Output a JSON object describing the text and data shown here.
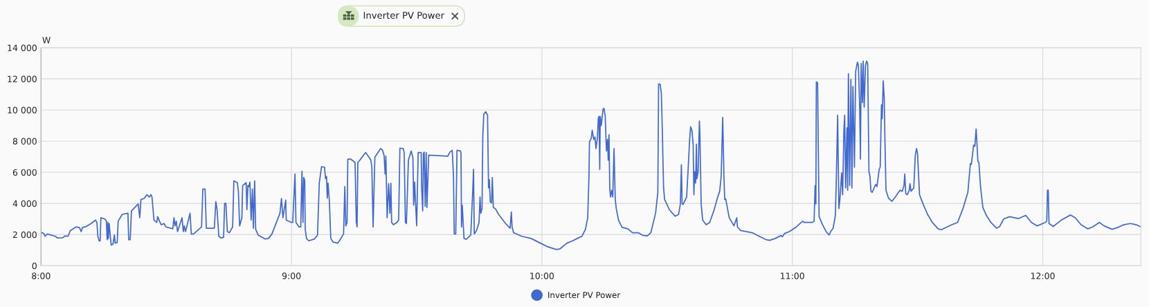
{
  "chart_data": {
    "type": "line",
    "title": "Inverter PV Power",
    "ylabel": "W",
    "x": [
      8.0,
      8.011,
      8.016,
      8.025,
      8.057,
      8.066,
      8.085,
      8.098,
      8.108,
      8.117,
      8.14,
      8.154,
      8.16,
      8.166,
      8.181,
      8.2,
      8.218,
      8.223,
      8.227,
      8.232,
      8.236,
      8.239,
      8.255,
      8.261,
      8.264,
      8.267,
      8.269,
      8.272,
      8.28,
      8.287,
      8.293,
      8.296,
      8.304,
      8.308,
      8.324,
      8.347,
      8.35,
      8.356,
      8.361,
      8.388,
      8.394,
      8.399,
      8.411,
      8.423,
      8.432,
      8.439,
      8.443,
      8.451,
      8.462,
      8.466,
      8.473,
      8.48,
      8.491,
      8.499,
      8.526,
      8.531,
      8.535,
      8.54,
      8.545,
      8.563,
      8.568,
      8.572,
      8.577,
      8.595,
      8.6,
      8.609,
      8.641,
      8.646,
      8.655,
      8.66,
      8.692,
      8.698,
      8.703,
      8.71,
      8.719,
      8.729,
      8.733,
      8.738,
      8.744,
      8.752,
      8.765,
      8.77,
      8.784,
      8.788,
      8.793,
      8.802,
      8.805,
      8.819,
      8.822,
      8.826,
      8.83,
      8.834,
      8.839,
      8.844,
      8.848,
      8.853,
      8.857,
      8.867,
      8.894,
      8.908,
      8.922,
      8.94,
      8.954,
      8.96,
      8.966,
      8.977,
      8.979,
      9.0,
      9.005,
      9.014,
      9.018,
      9.03,
      9.037,
      9.042,
      9.046,
      9.049,
      9.053,
      9.055,
      9.06,
      9.069,
      9.092,
      9.104,
      9.111,
      9.12,
      9.132,
      9.136,
      9.14,
      9.143,
      9.146,
      9.151,
      9.157,
      9.166,
      9.185,
      9.194,
      9.208,
      9.213,
      9.217,
      9.222,
      9.225,
      9.236,
      9.254,
      9.259,
      9.262,
      9.265,
      9.273,
      9.296,
      9.305,
      9.317,
      9.321,
      9.326,
      9.333,
      9.356,
      9.363,
      9.37,
      9.374,
      9.377,
      9.382,
      9.388,
      9.393,
      9.397,
      9.4,
      9.407,
      9.421,
      9.428,
      9.433,
      9.446,
      9.45,
      9.455,
      9.459,
      9.467,
      9.478,
      9.485,
      9.488,
      9.492,
      9.494,
      9.5,
      9.506,
      9.518,
      9.52,
      9.524,
      9.527,
      9.53,
      9.534,
      9.538,
      9.541,
      9.548,
      9.587,
      9.624,
      9.633,
      9.642,
      9.647,
      9.65,
      9.656,
      9.661,
      9.675,
      9.677,
      9.679,
      9.682,
      9.689,
      9.698,
      9.716,
      9.724,
      9.727,
      9.73,
      9.739,
      9.749,
      9.753,
      9.756,
      9.761,
      9.764,
      9.768,
      9.776,
      9.783,
      9.787,
      9.79,
      9.794,
      9.799,
      9.802,
      9.806,
      9.814,
      9.827,
      9.855,
      9.873,
      9.878,
      9.881,
      9.887,
      9.92,
      9.957,
      9.994,
      10.021,
      10.058,
      10.072,
      10.1,
      10.123,
      10.141,
      10.16,
      10.174,
      10.183,
      10.188,
      10.19,
      10.197,
      10.201,
      10.207,
      10.212,
      10.216,
      10.222,
      10.225,
      10.228,
      10.231,
      10.233,
      10.237,
      10.244,
      10.248,
      10.253,
      10.256,
      10.258,
      10.262,
      10.265,
      10.268,
      10.271,
      10.274,
      10.279,
      10.283,
      10.288,
      10.293,
      10.297,
      10.306,
      10.32,
      10.343,
      10.362,
      10.385,
      10.403,
      10.421,
      10.435,
      10.454,
      10.463,
      10.466,
      10.472,
      10.477,
      10.481,
      10.483,
      10.486,
      10.49,
      10.509,
      10.532,
      10.546,
      10.553,
      10.557,
      10.56,
      10.564,
      10.578,
      10.584,
      10.59,
      10.594,
      10.599,
      10.604,
      10.607,
      10.61,
      10.614,
      10.617,
      10.619,
      10.624,
      10.629,
      10.631,
      10.636,
      10.642,
      10.656,
      10.67,
      10.688,
      10.702,
      10.71,
      10.716,
      10.722,
      10.727,
      10.73,
      10.734,
      10.748,
      10.767,
      10.778,
      10.781,
      10.794,
      10.84,
      10.868,
      10.896,
      10.909,
      10.932,
      10.955,
      10.96,
      10.969,
      10.988,
      11.016,
      11.041,
      11.048,
      11.08,
      11.087,
      11.091,
      11.094,
      11.096,
      11.101,
      11.105,
      11.107,
      11.121,
      11.135,
      11.147,
      11.153,
      11.163,
      11.172,
      11.176,
      11.181,
      11.186,
      11.19,
      11.197,
      11.201,
      11.206,
      11.209,
      11.213,
      11.218,
      11.221,
      11.224,
      11.229,
      11.234,
      11.238,
      11.242,
      11.248,
      11.253,
      11.26,
      11.264,
      11.269,
      11.272,
      11.275,
      11.28,
      11.283,
      11.287,
      11.292,
      11.297,
      11.301,
      11.306,
      11.31,
      11.314,
      11.319,
      11.333,
      11.338,
      11.347,
      11.351,
      11.356,
      11.359,
      11.363,
      11.367,
      11.37,
      11.374,
      11.384,
      11.398,
      11.411,
      11.43,
      11.439,
      11.446,
      11.449,
      11.453,
      11.459,
      11.467,
      11.47,
      11.474,
      11.485,
      11.491,
      11.496,
      11.5,
      11.503,
      11.508,
      11.522,
      11.54,
      11.559,
      11.582,
      11.595,
      11.618,
      11.637,
      11.66,
      11.683,
      11.701,
      11.711,
      11.715,
      11.724,
      11.729,
      11.734,
      11.738,
      11.741,
      11.745,
      11.752,
      11.761,
      11.775,
      11.793,
      11.816,
      11.828,
      11.844,
      11.867,
      11.904,
      11.932,
      11.955,
      11.978,
      12.01,
      12.016,
      12.019,
      12.022,
      12.025,
      12.042,
      12.074,
      12.111,
      12.13,
      12.153,
      12.18,
      12.199,
      12.226,
      12.245,
      12.277,
      12.3,
      12.323,
      12.35,
      12.374,
      12.392
    ],
    "series": [
      {
        "name": "Inverter PV Power",
        "color": "#4269d0",
        "values": [
          2150,
          2070,
          1890,
          2040,
          1890,
          1780,
          1790,
          1920,
          1890,
          2260,
          2490,
          2440,
          2190,
          2460,
          2520,
          2710,
          2930,
          2780,
          1890,
          1600,
          1600,
          3080,
          3000,
          2860,
          1670,
          2780,
          1750,
          2710,
          1330,
          1380,
          1970,
          1450,
          1480,
          2860,
          3300,
          3370,
          1670,
          1670,
          3520,
          3970,
          3080,
          4260,
          4310,
          4560,
          4410,
          4560,
          4410,
          2930,
          2780,
          3150,
          2860,
          2630,
          2710,
          2490,
          2370,
          3080,
          2560,
          2860,
          2190,
          3080,
          2190,
          2560,
          2190,
          3370,
          2040,
          2040,
          2490,
          4930,
          4930,
          2410,
          2410,
          4110,
          3600,
          1890,
          1780,
          1820,
          4000,
          4000,
          2190,
          2120,
          2490,
          5450,
          5330,
          4780,
          2560,
          3080,
          5150,
          5330,
          3600,
          5150,
          5080,
          5370,
          2930,
          4930,
          2410,
          5450,
          2340,
          1970,
          1720,
          1750,
          2040,
          2780,
          3370,
          4310,
          3080,
          4220,
          2930,
          2780,
          2780,
          5890,
          2780,
          2490,
          2490,
          6070,
          2780,
          5670,
          5450,
          2340,
          1750,
          1600,
          1720,
          1970,
          5300,
          6360,
          6330,
          5590,
          5740,
          4340,
          5300,
          4260,
          1750,
          1520,
          1450,
          1670,
          2040,
          5080,
          2560,
          2780,
          6850,
          6850,
          6630,
          2780,
          2490,
          6630,
          6780,
          7270,
          7070,
          6780,
          6330,
          2490,
          6970,
          7520,
          7440,
          7070,
          5890,
          7040,
          3080,
          5270,
          3370,
          5300,
          2780,
          2630,
          2780,
          2930,
          7550,
          7520,
          7300,
          2780,
          2710,
          6780,
          7370,
          6930,
          3890,
          5370,
          4560,
          2560,
          7270,
          7270,
          5000,
          3520,
          7220,
          7300,
          3820,
          7270,
          3740,
          7100,
          7070,
          7030,
          7300,
          7410,
          5740,
          2040,
          2040,
          7410,
          7370,
          7220,
          2490,
          3890,
          1750,
          1700,
          1970,
          4850,
          6190,
          2040,
          2260,
          2780,
          4410,
          3370,
          3670,
          8330,
          9740,
          9890,
          9660,
          5000,
          5520,
          4110,
          4040,
          5670,
          3740,
          3670,
          3300,
          2710,
          2410,
          3450,
          2490,
          2120,
          1890,
          1750,
          1450,
          1230,
          1040,
          1080,
          1450,
          1600,
          1750,
          1890,
          2340,
          3080,
          5740,
          7960,
          8180,
          8700,
          8110,
          8260,
          7520,
          8260,
          9440,
          9590,
          6190,
          9590,
          9000,
          10030,
          10110,
          9590,
          8110,
          7370,
          8110,
          6780,
          8410,
          5000,
          4410,
          4850,
          4410,
          7520,
          4260,
          3670,
          2930,
          2460,
          2370,
          2120,
          2120,
          1950,
          1920,
          2120,
          3370,
          4710,
          11660,
          11660,
          11070,
          8700,
          7070,
          5000,
          4260,
          3600,
          3180,
          3300,
          3970,
          6480,
          3970,
          3940,
          4410,
          6190,
          8110,
          8920,
          8700,
          7810,
          4560,
          6040,
          5300,
          7810,
          5590,
          6040,
          9290,
          8410,
          3970,
          2930,
          2630,
          2780,
          3600,
          4410,
          4780,
          5740,
          9520,
          5740,
          4260,
          4290,
          3080,
          2560,
          3080,
          2490,
          2260,
          2120,
          1890,
          1670,
          1630,
          1750,
          1940,
          1860,
          2070,
          2190,
          2490,
          2860,
          2780,
          2780,
          2860,
          5150,
          3970,
          11810,
          11740,
          5740,
          3150,
          2630,
          2190,
          1970,
          2190,
          2410,
          3230,
          5740,
          9660,
          3670,
          4260,
          5960,
          4560,
          8700,
          9660,
          5000,
          8850,
          4850,
          12330,
          5150,
          11960,
          5000,
          11510,
          6330,
          12480,
          13070,
          12850,
          10180,
          6850,
          12990,
          10480,
          13140,
          10180,
          12850,
          13140,
          12990,
          6040,
          5740,
          4780,
          4710,
          5220,
          5080,
          6190,
          6330,
          10330,
          9440,
          11880,
          10770,
          7960,
          4850,
          4340,
          4140,
          4410,
          4850,
          4780,
          5150,
          5890,
          4630,
          4560,
          4850,
          5270,
          4780,
          5000,
          7070,
          7520,
          7220,
          6190,
          4560,
          3970,
          3300,
          2780,
          2370,
          2310,
          2490,
          2630,
          2780,
          3740,
          4710,
          6560,
          6510,
          7740,
          7670,
          8780,
          7670,
          6700,
          6630,
          5000,
          3740,
          3230,
          2780,
          2410,
          2520,
          3000,
          3150,
          3030,
          3230,
          2780,
          2560,
          2780,
          2860,
          4850,
          4850,
          2710,
          2520,
          2930,
          3260,
          3080,
          2630,
          2370,
          2490,
          2780,
          2560,
          2340,
          2460,
          2630,
          2710,
          2630,
          2490
        ]
      }
    ],
    "xlim": [
      8,
      12.392
    ],
    "xticks": [
      {
        "value": 8,
        "label": "8:00"
      },
      {
        "value": 9,
        "label": "9:00"
      },
      {
        "value": 10,
        "label": "10:00"
      },
      {
        "value": 11,
        "label": "11:00"
      },
      {
        "value": 12,
        "label": "12:00"
      }
    ],
    "ylim": [
      0,
      14000
    ],
    "yticks": [
      0,
      {
        "value": 2000,
        "label": "2 000"
      },
      {
        "value": 4000,
        "label": "4 000"
      },
      {
        "value": 6000,
        "label": "6 000"
      },
      {
        "value": 8000,
        "label": "8 000"
      },
      {
        "value": 10000,
        "label": "10 000"
      },
      {
        "value": 12000,
        "label": "12 000"
      },
      {
        "value": 14000,
        "label": "14 000"
      }
    ],
    "grid": true,
    "legend": "bottom",
    "line_style": "solid"
  }
}
